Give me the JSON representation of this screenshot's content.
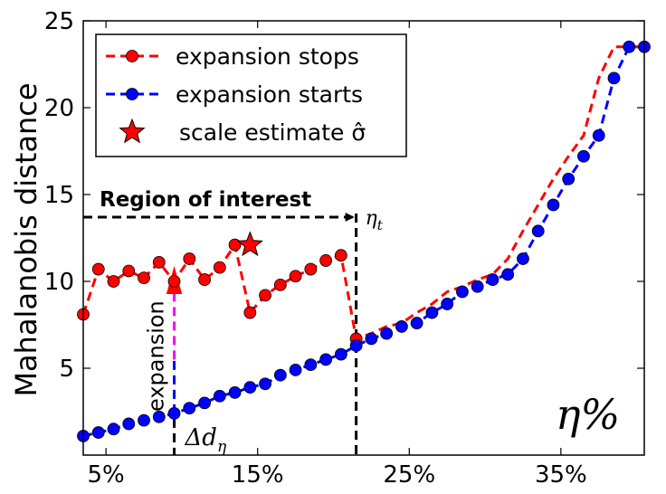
{
  "chart_data": {
    "type": "line",
    "ylabel": "Mahalanobis distance",
    "xlim": [
      3.5,
      40.5
    ],
    "ylim": [
      0,
      25
    ],
    "x_ticks": [
      {
        "value": 5,
        "label": "5%"
      },
      {
        "value": 15,
        "label": "15%"
      },
      {
        "value": 25,
        "label": "25%"
      },
      {
        "value": 35,
        "label": "35%"
      }
    ],
    "y_ticks": [
      {
        "value": 5,
        "label": "5"
      },
      {
        "value": 10,
        "label": "10"
      },
      {
        "value": 15,
        "label": "15"
      },
      {
        "value": 20,
        "label": "20"
      },
      {
        "value": 25,
        "label": "25"
      }
    ],
    "legend_position": "top-left",
    "series": [
      {
        "name": "expansion stops",
        "color": "#ff0000",
        "marker": "circle",
        "x": [
          3.5,
          4.5,
          5.5,
          6.5,
          7.5,
          8.5,
          9.5,
          10.5,
          11.5,
          12.5,
          13.5,
          14.5,
          15.5,
          16.5,
          17.5,
          18.5,
          19.5,
          20.5,
          21.5,
          22.5,
          23.5,
          24.5,
          25.5,
          26.5,
          27.5,
          28.5,
          29.5,
          30.5,
          31.5,
          32.5,
          33.5,
          34.5,
          35.5,
          36.5,
          37.5,
          38.5,
          39.5,
          40.5
        ],
        "values": [
          8.1,
          10.7,
          10.0,
          10.6,
          10.2,
          11.1,
          10.0,
          11.3,
          10.1,
          10.8,
          12.1,
          8.2,
          9.2,
          9.8,
          10.3,
          10.7,
          11.2,
          11.5,
          6.7,
          7.0,
          7.4,
          7.6,
          8.2,
          8.7,
          9.4,
          9.7,
          10.1,
          10.4,
          11.3,
          12.9,
          14.4,
          15.9,
          17.2,
          18.4,
          21.7,
          23.5,
          23.5,
          23.5
        ]
      },
      {
        "name": "expansion starts",
        "color": "#0000ff",
        "marker": "circle",
        "x": [
          3.5,
          4.5,
          5.5,
          6.5,
          7.5,
          8.5,
          9.5,
          10.5,
          11.5,
          12.5,
          13.5,
          14.5,
          15.5,
          16.5,
          17.5,
          18.5,
          19.5,
          20.5,
          21.5,
          22.5,
          23.5,
          24.5,
          25.5,
          26.5,
          27.5,
          28.5,
          29.5,
          30.5,
          31.5,
          32.5,
          33.5,
          34.5,
          35.5,
          36.5,
          37.5,
          38.5,
          39.5,
          40.5
        ],
        "values": [
          1.1,
          1.3,
          1.5,
          1.8,
          2.0,
          2.2,
          2.4,
          2.7,
          3.0,
          3.4,
          3.6,
          3.9,
          4.1,
          4.6,
          4.9,
          5.2,
          5.5,
          5.8,
          6.3,
          6.7,
          7.0,
          7.4,
          7.6,
          8.2,
          8.7,
          9.4,
          9.7,
          10.1,
          10.4,
          11.3,
          12.9,
          14.4,
          15.9,
          17.2,
          18.4,
          21.7,
          23.5,
          23.5
        ]
      }
    ],
    "legend": [
      {
        "label": "expansion stops",
        "marker": "circle",
        "color": "#ff0000"
      },
      {
        "label": "expansion starts",
        "marker": "circle",
        "color": "#0000ff"
      },
      {
        "label": "scale estimate σ̂",
        "marker": "star",
        "color": "#ff0000"
      }
    ],
    "scale_estimate": {
      "x": 14.5,
      "y": 12.1
    },
    "annotations": {
      "region_label": "Region of interest",
      "region_y": 13.7,
      "eta_t_x": 21.5,
      "eta_t_label": "η",
      "eta_t_sub": "t",
      "expansion_label": "expansion",
      "expansion_x": 9.5,
      "expansion_from": 2.4,
      "expansion_to": 11.1,
      "delta_label": "Δd",
      "delta_sub": "η",
      "eta_pct_label": "η%"
    }
  }
}
